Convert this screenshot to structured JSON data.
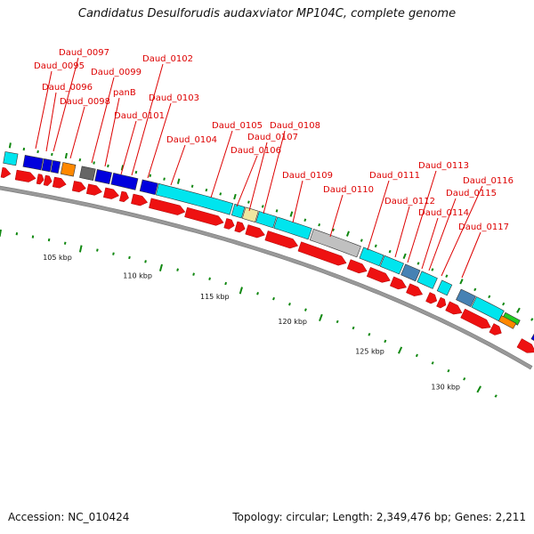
{
  "title": "Candidatus Desulforudis audaxviator MP104C, complete genome",
  "accession": "Accession: NC_010424",
  "summary": "Topology: circular; Length: 2,349,476 bp; Genes: 2,211",
  "colors": {
    "label": "#dd0000",
    "forward_gene": "#ee1111",
    "backbone": "#999999",
    "tick": "#118811"
  },
  "gene_labels": [
    "Daud_0095",
    "Daud_0096",
    "Daud_0097",
    "Daud_0098",
    "Daud_0099",
    "panB",
    "Daud_0101",
    "Daud_0102",
    "Daud_0103",
    "Daud_0104",
    "Daud_0105",
    "Daud_0106",
    "Daud_0107",
    "Daud_0108",
    "Daud_0109",
    "Daud_0110",
    "Daud_0111",
    "Daud_0112",
    "Daud_0113",
    "Daud_0114",
    "Daud_0115",
    "Daud_0116",
    "Daud_0117"
  ],
  "scale_labels": [
    "105 kbp",
    "110 kbp",
    "115 kbp",
    "120 kbp",
    "125 kbp",
    "130 kbp"
  ]
}
